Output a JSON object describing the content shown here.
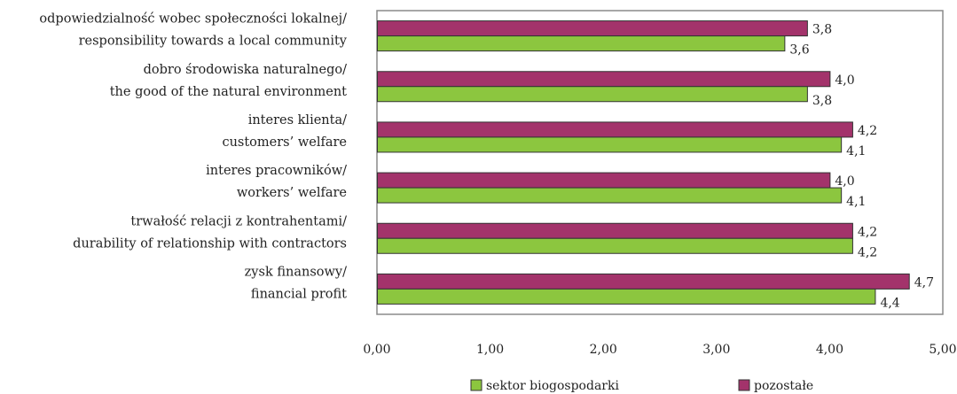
{
  "chart_data": {
    "type": "bar",
    "orientation": "horizontal",
    "categories": [
      {
        "line1": "odpowiedzialność wobec społeczności lokalnej/",
        "line2": "responsibility towards a local community"
      },
      {
        "line1": "dobro środowiska naturalnego/",
        "line2": "the good of the natural environment"
      },
      {
        "line1": "interes klienta/",
        "line2": "customers’ welfare"
      },
      {
        "line1": "interes pracowników/",
        "line2": "workers’ welfare"
      },
      {
        "line1": "trwałość relacji z kontrahentami/",
        "line2": "durability of relationship with contractors"
      },
      {
        "line1": "zysk finansowy/",
        "line2": "financial profit"
      }
    ],
    "series": [
      {
        "name": "pozostałe",
        "color": "#a3336b",
        "values": [
          3.8,
          4.0,
          4.2,
          4.0,
          4.2,
          4.7
        ],
        "labels": [
          "3,8",
          "4,0",
          "4,2",
          "4,0",
          "4,2",
          "4,7"
        ]
      },
      {
        "name": "sektor biogospodarki",
        "color": "#8cc63f",
        "values": [
          3.6,
          3.8,
          4.1,
          4.1,
          4.2,
          4.4
        ],
        "labels": [
          "3,6",
          "3,8",
          "4,1",
          "4,1",
          "4,2",
          "4,4"
        ]
      }
    ],
    "xlim": [
      0,
      5
    ],
    "xticks": [
      0,
      1,
      2,
      3,
      4,
      5
    ],
    "xtick_labels": [
      "0,00",
      "1,00",
      "2,00",
      "3,00",
      "4,00",
      "5,00"
    ],
    "legend": [
      {
        "name": "sektor biogospodarki",
        "color": "#8cc63f"
      },
      {
        "name": "pozostałe",
        "color": "#a3336b"
      }
    ],
    "legend_position": "bottom",
    "grid": false,
    "frame_color": "#8a8a8a"
  }
}
